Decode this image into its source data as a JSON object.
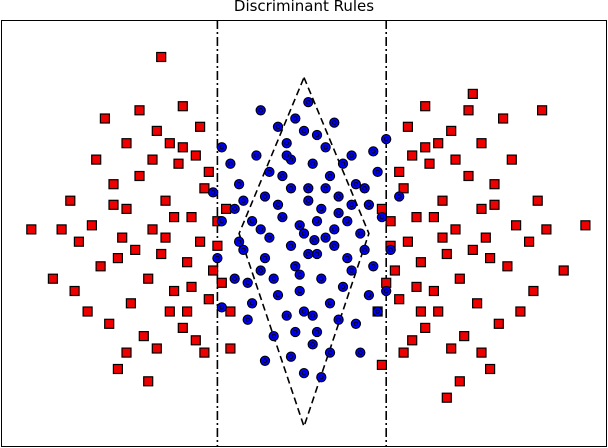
{
  "chart_data": {
    "type": "scatter",
    "title": "Discriminant Rules",
    "xlabel": "",
    "ylabel": "",
    "xlim": [
      -3.5,
      3.5
    ],
    "ylim": [
      -2.6,
      2.6
    ],
    "grid": false,
    "legend": "none",
    "series": [
      {
        "marker": "square",
        "color": "#ee0000",
        "points": [
          [
            -2.4,
            0.9
          ],
          [
            -2.2,
            0.35
          ],
          [
            -2.05,
            0.3
          ],
          [
            -1.9,
            0.7
          ],
          [
            -1.75,
            0.05
          ],
          [
            -1.6,
            0.4
          ],
          [
            -1.45,
            0.85
          ],
          [
            -1.3,
            0.2
          ],
          [
            -1.15,
            0.55
          ],
          [
            -1.0,
            0.15
          ],
          [
            -2.6,
            -0.1
          ],
          [
            -2.35,
            -0.4
          ],
          [
            -2.15,
            -0.3
          ],
          [
            -1.95,
            -0.2
          ],
          [
            -1.8,
            -0.55
          ],
          [
            -1.65,
            -0.25
          ],
          [
            -1.5,
            -0.7
          ],
          [
            -1.35,
            -0.35
          ],
          [
            -1.2,
            -0.1
          ],
          [
            -1.05,
            -0.45
          ],
          [
            -2.5,
            -0.95
          ],
          [
            -2.25,
            -1.1
          ],
          [
            -2.0,
            -0.85
          ],
          [
            -1.85,
            -1.25
          ],
          [
            -1.7,
            -1.4
          ],
          [
            -1.55,
            -0.95
          ],
          [
            -1.4,
            -1.15
          ],
          [
            -1.25,
            -1.3
          ],
          [
            -1.1,
            -0.8
          ],
          [
            -0.95,
            -0.6
          ],
          [
            -2.3,
            1.4
          ],
          [
            -2.05,
            1.1
          ],
          [
            -1.9,
            1.5
          ],
          [
            -1.7,
            1.25
          ],
          [
            -1.55,
            1.1
          ],
          [
            -1.4,
            1.05
          ],
          [
            -1.25,
            0.95
          ],
          [
            -1.1,
            0.75
          ],
          [
            -2.15,
            -1.65
          ],
          [
            -1.8,
            -1.8
          ],
          [
            -2.7,
            0.4
          ],
          [
            -2.65,
            -0.7
          ],
          [
            -2.45,
            0.1
          ],
          [
            -2.1,
            -0.05
          ],
          [
            -1.6,
            -0.05
          ],
          [
            -1.3,
            -0.65
          ],
          [
            -1.0,
            -0.15
          ],
          [
            -0.9,
            0.3
          ],
          [
            -0.85,
            -0.95
          ],
          [
            -1.65,
            2.15
          ],
          [
            -1.4,
            1.55
          ],
          [
            -1.2,
            1.3
          ],
          [
            -2.2,
            0.6
          ],
          [
            -1.75,
            0.9
          ],
          [
            -1.5,
            0.2
          ],
          [
            -1.35,
            -0.95
          ],
          [
            -1.15,
            -1.45
          ],
          [
            -2.05,
            -1.45
          ],
          [
            -2.8,
            0.05
          ],
          [
            -2.9,
            -0.55
          ],
          [
            2.4,
            0.9
          ],
          [
            2.2,
            0.35
          ],
          [
            2.05,
            0.3
          ],
          [
            1.9,
            0.7
          ],
          [
            1.75,
            0.05
          ],
          [
            1.6,
            0.4
          ],
          [
            1.45,
            0.85
          ],
          [
            1.3,
            0.2
          ],
          [
            1.15,
            0.55
          ],
          [
            1.0,
            0.15
          ],
          [
            2.6,
            -0.1
          ],
          [
            2.35,
            -0.4
          ],
          [
            2.15,
            -0.3
          ],
          [
            1.95,
            -0.2
          ],
          [
            1.8,
            -0.55
          ],
          [
            1.65,
            -0.25
          ],
          [
            1.5,
            -0.7
          ],
          [
            1.35,
            -0.35
          ],
          [
            1.2,
            -0.1
          ],
          [
            1.05,
            -0.45
          ],
          [
            2.5,
            -0.95
          ],
          [
            2.25,
            -1.1
          ],
          [
            2.0,
            -0.85
          ],
          [
            1.85,
            -1.25
          ],
          [
            1.7,
            -1.4
          ],
          [
            1.55,
            -0.95
          ],
          [
            1.4,
            -1.15
          ],
          [
            1.25,
            -1.3
          ],
          [
            1.1,
            -0.8
          ],
          [
            0.95,
            -0.6
          ],
          [
            2.3,
            1.4
          ],
          [
            2.05,
            1.1
          ],
          [
            1.9,
            1.5
          ],
          [
            1.7,
            1.25
          ],
          [
            1.55,
            1.1
          ],
          [
            1.4,
            1.05
          ],
          [
            1.25,
            0.95
          ],
          [
            1.1,
            0.75
          ],
          [
            2.15,
            -1.65
          ],
          [
            1.8,
            -1.8
          ],
          [
            2.7,
            0.4
          ],
          [
            2.65,
            -0.7
          ],
          [
            2.45,
            0.1
          ],
          [
            2.1,
            -0.05
          ],
          [
            1.6,
            -0.05
          ],
          [
            1.3,
            -0.65
          ],
          [
            1.0,
            -0.15
          ],
          [
            0.9,
            0.3
          ],
          [
            0.85,
            -0.95
          ],
          [
            1.65,
            -2.0
          ],
          [
            1.4,
            1.55
          ],
          [
            1.2,
            1.3
          ],
          [
            2.2,
            0.6
          ],
          [
            1.75,
            0.9
          ],
          [
            1.5,
            0.2
          ],
          [
            1.35,
            -0.95
          ],
          [
            1.15,
            -1.45
          ],
          [
            2.05,
            -1.45
          ],
          [
            2.8,
            0.05
          ],
          [
            3.0,
            -0.45
          ],
          [
            3.25,
            0.1
          ],
          [
            -3.15,
            0.05
          ],
          [
            0.9,
            -1.6
          ],
          [
            -0.85,
            -1.4
          ],
          [
            2.75,
            1.5
          ],
          [
            1.95,
            1.7
          ]
        ]
      },
      {
        "marker": "circle",
        "color": "#0000ff",
        "points": [
          [
            0.0,
            0.0
          ],
          [
            0.2,
            0.3
          ],
          [
            -0.25,
            0.2
          ],
          [
            0.15,
            -0.25
          ],
          [
            -0.1,
            -0.4
          ],
          [
            0.35,
            0.05
          ],
          [
            -0.4,
            -0.05
          ],
          [
            0.05,
            0.55
          ],
          [
            -0.05,
            -0.7
          ],
          [
            0.5,
            -0.3
          ],
          [
            -0.45,
            0.45
          ],
          [
            0.3,
            0.7
          ],
          [
            -0.3,
            -0.75
          ],
          [
            0.55,
            0.35
          ],
          [
            -0.6,
            0.15
          ],
          [
            0.1,
            -1.0
          ],
          [
            -0.15,
            0.9
          ],
          [
            0.45,
            -0.65
          ],
          [
            -0.5,
            -0.45
          ],
          [
            0.25,
            1.05
          ],
          [
            0.65,
            0.0
          ],
          [
            -0.7,
            -0.2
          ],
          [
            0.0,
            1.25
          ],
          [
            0.1,
            -1.35
          ],
          [
            -0.2,
            1.1
          ],
          [
            0.4,
            -1.05
          ],
          [
            0.7,
            0.55
          ],
          [
            -0.75,
            0.6
          ],
          [
            0.8,
            -0.4
          ],
          [
            -0.8,
            -0.55
          ],
          [
            0.9,
            0.2
          ],
          [
            -0.95,
            0.15
          ],
          [
            0.0,
            -1.7
          ],
          [
            -0.1,
            1.4
          ],
          [
            0.3,
            -1.45
          ],
          [
            -0.35,
            -1.25
          ],
          [
            0.55,
            0.95
          ],
          [
            -0.55,
            0.95
          ],
          [
            0.6,
            -1.1
          ],
          [
            -0.65,
            -1.05
          ],
          [
            1.0,
            -0.2
          ],
          [
            -1.0,
            -0.3
          ],
          [
            0.15,
            0.15
          ],
          [
            -0.15,
            -0.15
          ],
          [
            0.25,
            -0.05
          ],
          [
            -0.3,
            0.35
          ],
          [
            0.05,
            0.4
          ],
          [
            0.4,
            0.45
          ],
          [
            -0.05,
            -0.5
          ],
          [
            0.2,
            -0.55
          ],
          [
            -0.25,
            0.7
          ],
          [
            0.5,
            0.15
          ],
          [
            -0.45,
            -0.3
          ],
          [
            0.35,
            -0.15
          ],
          [
            0.1,
            0.85
          ],
          [
            -0.6,
            -0.85
          ],
          [
            0.75,
            -0.75
          ],
          [
            -0.8,
            0.3
          ],
          [
            0.85,
            0.75
          ],
          [
            -0.3,
            1.3
          ],
          [
            -0.85,
            0.85
          ],
          [
            0.95,
            -0.7
          ],
          [
            -0.05,
            0.1
          ],
          [
            0.12,
            -0.08
          ],
          [
            -0.4,
            0.75
          ],
          [
            0.6,
            0.6
          ],
          [
            -0.65,
            -0.6
          ],
          [
            0.45,
            0.85
          ],
          [
            0.0,
            -0.95
          ],
          [
            0.3,
            -0.85
          ],
          [
            -0.2,
            -1.0
          ],
          [
            0.7,
            -0.2
          ],
          [
            -0.7,
            0.4
          ],
          [
            0.15,
            1.2
          ],
          [
            -0.1,
            -1.2
          ],
          [
            1.1,
            0.45
          ],
          [
            -1.05,
            0.5
          ],
          [
            0.05,
            1.6
          ],
          [
            -0.15,
            -1.5
          ],
          [
            0.85,
            -0.95
          ],
          [
            -0.95,
            -0.9
          ],
          [
            0.8,
            1.0
          ],
          [
            -0.95,
            1.05
          ],
          [
            0.35,
            1.35
          ],
          [
            -0.45,
            -1.55
          ],
          [
            0.65,
            -1.45
          ],
          [
            -0.5,
            1.5
          ],
          [
            0.2,
            -1.75
          ],
          [
            0.95,
            1.15
          ],
          [
            -0.15,
            0.55
          ],
          [
            0.55,
            -0.45
          ],
          [
            -0.5,
            0.05
          ],
          [
            0.25,
            0.55
          ],
          [
            -0.35,
            -0.55
          ],
          [
            0.05,
            -0.25
          ],
          [
            0.4,
            0.25
          ],
          [
            -0.2,
            0.95
          ],
          [
            0.15,
            -1.2
          ],
          [
            0.75,
            0.35
          ],
          [
            -0.75,
            -0.1
          ]
        ]
      }
    ],
    "decision_boundaries": {
      "vertical_lines_x": [
        -1.0,
        0.95
      ],
      "diamond": [
        [
          0.0,
          1.9
        ],
        [
          0.75,
          0.0
        ],
        [
          0.0,
          -2.35
        ],
        [
          -0.75,
          0.0
        ]
      ]
    }
  }
}
